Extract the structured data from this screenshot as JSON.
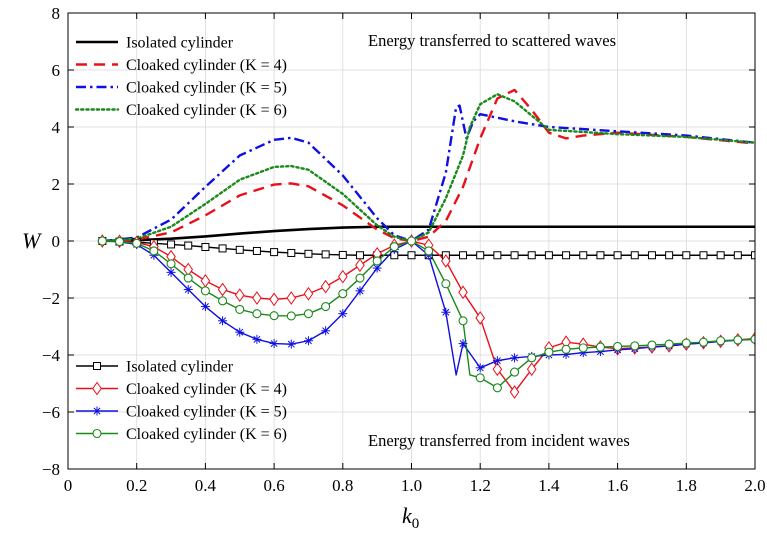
{
  "chart_data": {
    "type": "line",
    "xlabel": "k0",
    "xlabel_main": "k",
    "xlabel_sub": "0",
    "ylabel": "W",
    "xlim": [
      0,
      2
    ],
    "ylim": [
      -8,
      8
    ],
    "x_ticks": [
      0,
      0.2,
      0.4,
      0.6,
      0.8,
      1.0,
      1.2,
      1.4,
      1.6,
      1.8,
      2.0
    ],
    "x_tick_labels": [
      "0",
      "0.2",
      "0.4",
      "0.6",
      "0.8",
      "1.0",
      "1.2",
      "1.4",
      "1.6",
      "1.8",
      "2.0"
    ],
    "y_ticks": [
      -8,
      -6,
      -4,
      -2,
      0,
      2,
      4,
      6,
      8
    ],
    "y_tick_labels": [
      "−8",
      "−6",
      "−4",
      "−2",
      "0",
      "2",
      "4",
      "6",
      "8"
    ],
    "grid": true,
    "annotations": {
      "top": "Energy transferred to scattered waves",
      "bottom": "Energy transferred from incident waves"
    },
    "legends": {
      "upper": {
        "placement": "top-left",
        "entries": [
          {
            "label": "Isolated cylinder",
            "series": "scat_iso"
          },
          {
            "label": "Cloaked cylinder (K = 4)",
            "series": "scat_k4"
          },
          {
            "label": "Cloaked cylinder (K = 5)",
            "series": "scat_k5"
          },
          {
            "label": "Cloaked cylinder (K = 6)",
            "series": "scat_k6"
          }
        ]
      },
      "lower": {
        "placement": "bottom-left",
        "entries": [
          {
            "label": "Isolated cylinder",
            "series": "inc_iso"
          },
          {
            "label": "Cloaked cylinder (K = 4)",
            "series": "inc_k4"
          },
          {
            "label": "Cloaked cylinder (K = 5)",
            "series": "inc_k5"
          },
          {
            "label": "Cloaked cylinder (K = 6)",
            "series": "inc_k6"
          }
        ]
      }
    },
    "series": [
      {
        "id": "scat_iso",
        "name": "Isolated cylinder",
        "color": "#000000",
        "style": "solid",
        "marker": "none",
        "x": [
          0.1,
          0.2,
          0.3,
          0.4,
          0.5,
          0.6,
          0.7,
          0.8,
          0.9,
          1.0,
          1.2,
          1.4,
          1.6,
          1.8,
          2.0
        ],
        "y": [
          0.0,
          0.03,
          0.08,
          0.16,
          0.26,
          0.35,
          0.42,
          0.47,
          0.5,
          0.5,
          0.5,
          0.5,
          0.5,
          0.5,
          0.5
        ]
      },
      {
        "id": "scat_k4",
        "name": "Cloaked cylinder (K = 4)",
        "color": "#e8101a",
        "style": "dashed",
        "marker": "none",
        "x": [
          0.1,
          0.2,
          0.3,
          0.4,
          0.5,
          0.6,
          0.65,
          0.7,
          0.8,
          0.9,
          0.95,
          1.0,
          1.05,
          1.1,
          1.15,
          1.2,
          1.25,
          1.3,
          1.35,
          1.4,
          1.45,
          1.5,
          1.6,
          1.8,
          2.0
        ],
        "y": [
          0.0,
          0.05,
          0.3,
          0.9,
          1.6,
          1.98,
          2.02,
          1.92,
          1.25,
          0.4,
          0.1,
          0.0,
          0.15,
          0.7,
          1.9,
          3.6,
          5.0,
          5.3,
          4.6,
          3.8,
          3.6,
          3.7,
          3.8,
          3.65,
          3.42
        ]
      },
      {
        "id": "scat_k5",
        "name": "Cloaked cylinder (K = 5)",
        "color": "#1010e0",
        "style": "dashdot",
        "marker": "none",
        "x": [
          0.1,
          0.2,
          0.3,
          0.4,
          0.5,
          0.6,
          0.65,
          0.7,
          0.8,
          0.9,
          0.95,
          1.0,
          1.05,
          1.1,
          1.13,
          1.14,
          1.16,
          1.18,
          1.2,
          1.3,
          1.4,
          1.6,
          1.8,
          2.0
        ],
        "y": [
          0.0,
          0.12,
          0.75,
          1.9,
          3.0,
          3.55,
          3.62,
          3.45,
          2.3,
          0.8,
          0.2,
          0.0,
          0.4,
          2.4,
          4.7,
          4.75,
          3.6,
          4.2,
          4.45,
          4.2,
          4.0,
          3.85,
          3.7,
          3.45
        ]
      },
      {
        "id": "scat_k6",
        "name": "Cloaked cylinder (K = 6)",
        "color": "#1a8a1a",
        "style": "dotted",
        "marker": "none",
        "x": [
          0.1,
          0.2,
          0.3,
          0.4,
          0.5,
          0.6,
          0.65,
          0.7,
          0.8,
          0.9,
          0.95,
          1.0,
          1.05,
          1.1,
          1.15,
          1.17,
          1.2,
          1.25,
          1.3,
          1.4,
          1.6,
          1.8,
          2.0
        ],
        "y": [
          0.0,
          0.08,
          0.5,
          1.3,
          2.15,
          2.6,
          2.63,
          2.5,
          1.65,
          0.55,
          0.15,
          0.0,
          0.3,
          1.5,
          3.0,
          4.0,
          4.8,
          5.15,
          4.9,
          3.9,
          3.75,
          3.65,
          3.45
        ]
      },
      {
        "id": "inc_iso",
        "name": "Isolated cylinder",
        "color": "#000000",
        "style": "solid",
        "marker": "square",
        "x": [
          0.1,
          0.15,
          0.2,
          0.25,
          0.3,
          0.35,
          0.4,
          0.45,
          0.5,
          0.55,
          0.6,
          0.65,
          0.7,
          0.75,
          0.8,
          0.85,
          0.9,
          0.95,
          1.0,
          1.05,
          1.1,
          1.15,
          1.2,
          1.25,
          1.3,
          1.35,
          1.4,
          1.45,
          1.5,
          1.55,
          1.6,
          1.65,
          1.7,
          1.75,
          1.8,
          1.85,
          1.9,
          1.95,
          2.0
        ],
        "y": [
          0.0,
          -0.02,
          -0.04,
          -0.08,
          -0.12,
          -0.16,
          -0.21,
          -0.26,
          -0.31,
          -0.35,
          -0.39,
          -0.42,
          -0.45,
          -0.47,
          -0.49,
          -0.5,
          -0.5,
          -0.5,
          -0.5,
          -0.5,
          -0.5,
          -0.5,
          -0.5,
          -0.5,
          -0.5,
          -0.5,
          -0.5,
          -0.5,
          -0.5,
          -0.5,
          -0.5,
          -0.5,
          -0.5,
          -0.5,
          -0.5,
          -0.5,
          -0.5,
          -0.5,
          -0.5
        ]
      },
      {
        "id": "inc_k4",
        "name": "Cloaked cylinder (K = 4)",
        "color": "#e8101a",
        "style": "solid",
        "marker": "diamond",
        "x": [
          0.1,
          0.15,
          0.2,
          0.25,
          0.3,
          0.35,
          0.4,
          0.45,
          0.5,
          0.55,
          0.6,
          0.65,
          0.7,
          0.75,
          0.8,
          0.85,
          0.9,
          0.95,
          1.0,
          1.05,
          1.1,
          1.15,
          1.2,
          1.25,
          1.3,
          1.35,
          1.4,
          1.45,
          1.5,
          1.55,
          1.6,
          1.65,
          1.7,
          1.75,
          1.8,
          1.85,
          1.9,
          1.95,
          2.0
        ],
        "y": [
          0.0,
          -0.01,
          -0.05,
          -0.2,
          -0.55,
          -1.0,
          -1.4,
          -1.7,
          -1.9,
          -2.0,
          -2.05,
          -2.0,
          -1.85,
          -1.6,
          -1.25,
          -0.85,
          -0.45,
          -0.15,
          0.0,
          -0.15,
          -0.7,
          -1.8,
          -2.7,
          -4.5,
          -5.3,
          -4.5,
          -3.75,
          -3.55,
          -3.62,
          -3.72,
          -3.78,
          -3.75,
          -3.72,
          -3.68,
          -3.62,
          -3.57,
          -3.52,
          -3.47,
          -3.42
        ]
      },
      {
        "id": "inc_k5",
        "name": "Cloaked cylinder (K = 5)",
        "color": "#1010e0",
        "style": "solid",
        "marker": "star",
        "x": [
          0.1,
          0.15,
          0.2,
          0.25,
          0.3,
          0.35,
          0.4,
          0.45,
          0.5,
          0.55,
          0.6,
          0.65,
          0.7,
          0.75,
          0.8,
          0.85,
          0.9,
          0.95,
          1.0,
          1.05,
          1.1,
          1.13,
          1.15,
          1.2,
          1.25,
          1.3,
          1.35,
          1.4,
          1.45,
          1.5,
          1.55,
          1.6,
          1.65,
          1.7,
          1.75,
          1.8,
          1.85,
          1.9,
          1.95,
          2.0
        ],
        "y": [
          0.0,
          -0.03,
          -0.12,
          -0.5,
          -1.1,
          -1.7,
          -2.3,
          -2.8,
          -3.2,
          -3.45,
          -3.6,
          -3.62,
          -3.5,
          -3.15,
          -2.55,
          -1.75,
          -0.95,
          -0.3,
          0.0,
          -0.5,
          -2.5,
          -4.7,
          -3.6,
          -4.45,
          -4.2,
          -4.1,
          -4.05,
          -4.0,
          -3.98,
          -3.92,
          -3.88,
          -3.82,
          -3.78,
          -3.72,
          -3.68,
          -3.62,
          -3.58,
          -3.52,
          -3.48,
          -3.45
        ]
      },
      {
        "id": "inc_k6",
        "name": "Cloaked cylinder (K = 6)",
        "color": "#1a8a1a",
        "style": "solid",
        "marker": "circle",
        "x": [
          0.1,
          0.15,
          0.2,
          0.25,
          0.3,
          0.35,
          0.4,
          0.45,
          0.5,
          0.55,
          0.6,
          0.65,
          0.7,
          0.75,
          0.8,
          0.85,
          0.9,
          0.95,
          1.0,
          1.05,
          1.1,
          1.15,
          1.17,
          1.2,
          1.25,
          1.3,
          1.35,
          1.4,
          1.45,
          1.5,
          1.55,
          1.6,
          1.65,
          1.7,
          1.75,
          1.8,
          1.85,
          1.9,
          1.95,
          2.0
        ],
        "y": [
          0.0,
          -0.02,
          -0.08,
          -0.35,
          -0.8,
          -1.3,
          -1.75,
          -2.1,
          -2.4,
          -2.55,
          -2.62,
          -2.63,
          -2.55,
          -2.3,
          -1.85,
          -1.3,
          -0.7,
          -0.2,
          0.0,
          -0.35,
          -1.5,
          -2.8,
          -4.7,
          -4.8,
          -5.15,
          -4.6,
          -4.1,
          -3.9,
          -3.8,
          -3.75,
          -3.72,
          -3.7,
          -3.68,
          -3.65,
          -3.62,
          -3.58,
          -3.55,
          -3.5,
          -3.47,
          -3.45
        ]
      }
    ]
  }
}
